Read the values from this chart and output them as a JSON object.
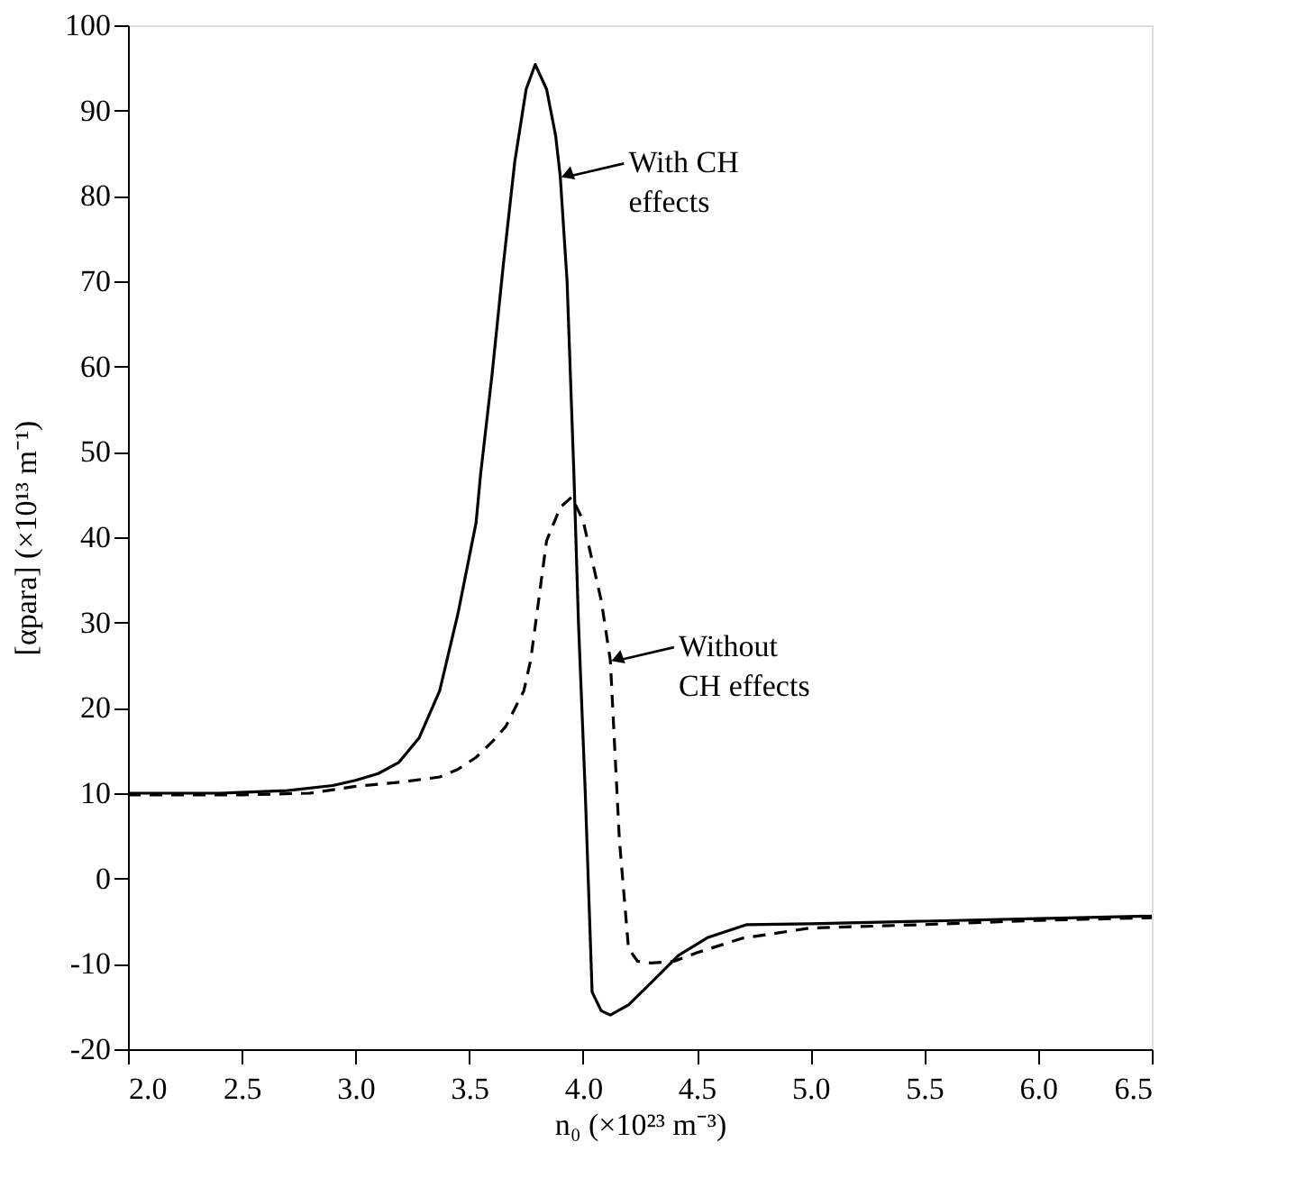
{
  "chart_data": {
    "type": "line",
    "xlabel": "n₀ (×10²³ m⁻³)",
    "ylabel": "[αpara] (×10¹³ m⁻¹)",
    "xlim": [
      2.0,
      6.5
    ],
    "xticks": [
      {
        "value": 2.0,
        "label": "2.0"
      },
      {
        "value": 2.5,
        "label": "2.5"
      },
      {
        "value": 3.0,
        "label": "3.0"
      },
      {
        "value": 3.5,
        "label": "3.5"
      },
      {
        "value": 4.0,
        "label": "4.0"
      },
      {
        "value": 4.5,
        "label": "4.5"
      },
      {
        "value": 5.0,
        "label": "5.0"
      },
      {
        "value": 5.5,
        "label": "5.5"
      },
      {
        "value": 6.0,
        "label": "6.0"
      },
      {
        "value": 6.5,
        "label": "6.5"
      }
    ],
    "ylim": [
      -20,
      100
    ],
    "yticks": [
      -20,
      -10,
      0,
      10,
      20,
      30,
      40,
      50,
      60,
      70,
      80,
      90,
      100
    ],
    "grid": false,
    "marker": "none",
    "series": [
      {
        "color": "#000000",
        "line_style": "solid",
        "x": [
          2.0,
          2.4,
          2.7,
          2.9,
          3.0,
          3.1,
          3.19,
          3.28,
          3.37,
          3.45,
          3.53,
          3.55,
          3.6,
          3.65,
          3.7,
          3.75,
          3.79,
          3.84,
          3.88,
          3.9,
          3.93,
          3.96,
          3.98,
          4.01,
          4.04,
          4.08,
          4.12,
          4.2,
          4.3,
          4.42,
          4.55,
          4.72,
          5.0,
          5.5,
          6.0,
          6.5
        ],
        "values": [
          10,
          10,
          10.3,
          10.9,
          11.5,
          12.3,
          13.6,
          16.5,
          22,
          31,
          41.7,
          47.4,
          59,
          72,
          84,
          92.5,
          95.4,
          92.5,
          87,
          82.3,
          70,
          47.4,
          30,
          10,
          -13.3,
          -15.5,
          -16,
          -14.8,
          -12.2,
          -9,
          -6.9,
          -5.4,
          -5.3,
          -5.0,
          -4.7,
          -4.4
        ]
      },
      {
        "color": "#000000",
        "line_style": "dashed",
        "x": [
          2.0,
          2.5,
          2.8,
          3.0,
          3.2,
          3.37,
          3.45,
          3.53,
          3.6,
          3.66,
          3.74,
          3.77,
          3.84,
          3.9,
          3.95,
          4.0,
          4.08,
          4.12,
          4.14,
          4.16,
          4.2,
          4.24,
          4.3,
          4.4,
          4.5,
          4.7,
          5.0,
          5.5,
          6.0,
          6.5
        ],
        "values": [
          9.8,
          9.8,
          10.0,
          10.8,
          11.3,
          11.9,
          12.8,
          14.2,
          16.0,
          17.8,
          22,
          25.6,
          39.6,
          43.5,
          44.7,
          42,
          32.6,
          25.6,
          15,
          4.5,
          -8.2,
          -9.7,
          -9.9,
          -9.7,
          -8.7,
          -7.0,
          -5.8,
          -5.4,
          -4.9,
          -4.6
        ]
      }
    ],
    "annotations": [
      {
        "text": "With CH\neffects",
        "x": 3.9,
        "y": 82.3
      },
      {
        "text": "Without\nCH effects",
        "x": 4.12,
        "y": 25.6
      }
    ]
  }
}
